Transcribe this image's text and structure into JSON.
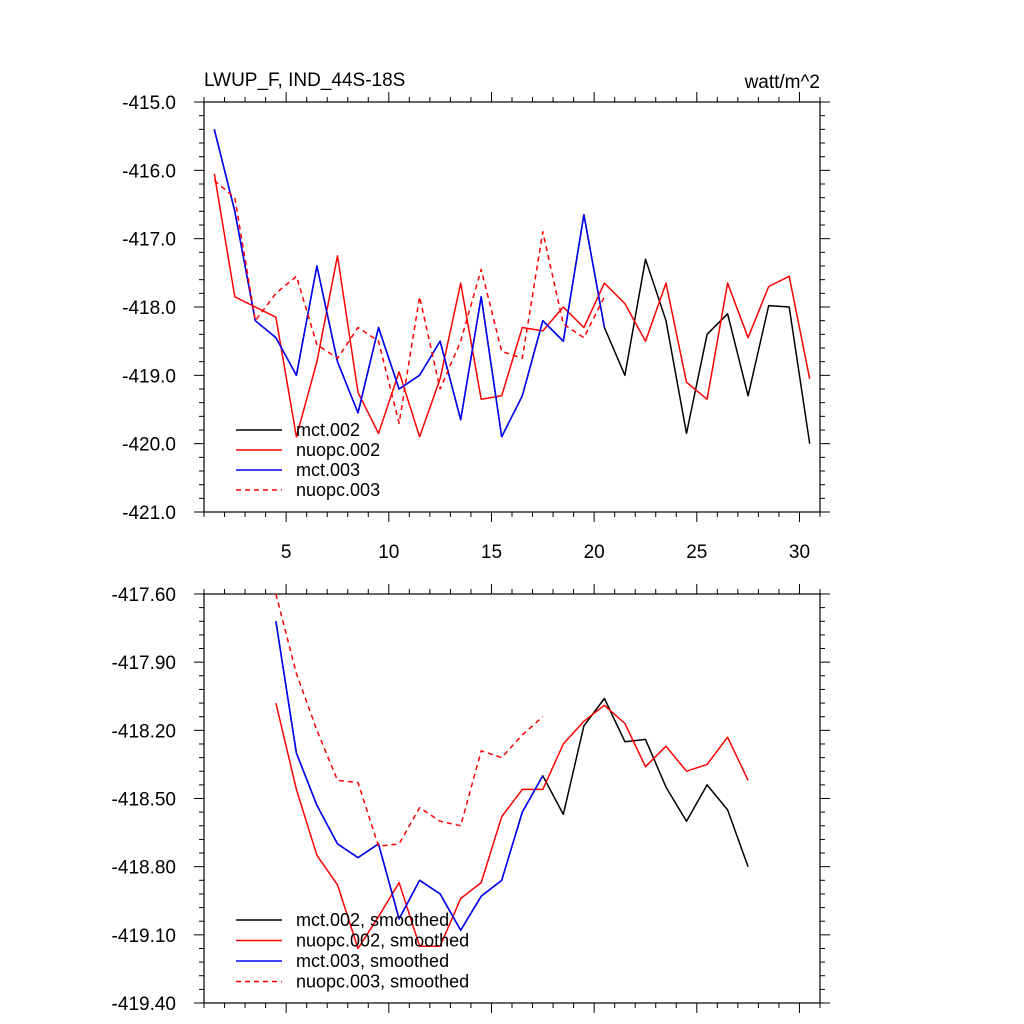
{
  "chart_data": [
    {
      "type": "line",
      "title": "LWUP_F, IND_44S-18S",
      "units": "watt/m^2",
      "xlim": [
        1,
        31
      ],
      "ylim": [
        -421.0,
        -415.0
      ],
      "x_ticks": [
        5,
        10,
        15,
        20,
        25,
        30
      ],
      "x_tick_labels": [
        "5",
        "10",
        "15",
        "20",
        "25",
        "30"
      ],
      "y_ticks": [
        -421.0,
        -420.0,
        -419.0,
        -418.0,
        -417.0,
        -416.0,
        -415.0
      ],
      "y_tick_labels": [
        "-421.0",
        "-420.0",
        "-419.0",
        "-418.0",
        "-417.0",
        "-416.0",
        "-415.0"
      ],
      "legend_position": "bottom-left",
      "series": [
        {
          "name": "mct.002",
          "color": "#000000",
          "dash": "solid",
          "x": [
            1.5,
            2.5,
            3.5,
            4.5,
            5.5,
            6.5,
            7.5,
            8.5,
            9.5,
            10.5,
            11.5,
            12.5,
            13.5,
            14.5,
            15.5,
            16.5,
            17.5,
            18.5,
            19.5,
            20.5,
            21.5,
            22.5,
            23.5,
            24.5,
            25.5,
            26.5,
            27.5,
            28.5,
            29.5,
            30.5
          ],
          "values": [
            -415.4,
            -416.6,
            -418.2,
            -418.45,
            -419.0,
            -417.4,
            -418.8,
            -419.55,
            -418.3,
            -419.2,
            -419.0,
            -418.5,
            -419.65,
            -417.85,
            -419.9,
            -419.3,
            -418.2,
            -418.5,
            -416.65,
            -418.3,
            -419.0,
            -417.3,
            -418.2,
            -419.85,
            -418.4,
            -418.1,
            -419.3,
            -417.98,
            -418.0,
            -420.0
          ]
        },
        {
          "name": "nuopc.002",
          "color": "#ff0000",
          "dash": "solid",
          "x": [
            1.5,
            2.5,
            3.5,
            4.5,
            5.5,
            6.5,
            7.5,
            8.5,
            9.5,
            10.5,
            11.5,
            12.5,
            13.5,
            14.5,
            15.5,
            16.5,
            17.5,
            18.5,
            19.5,
            20.5,
            21.5,
            22.5,
            23.5,
            24.5,
            25.5,
            26.5,
            27.5,
            28.5,
            29.5,
            30.5
          ],
          "values": [
            -416.05,
            -417.85,
            -418.0,
            -418.15,
            -419.9,
            -418.8,
            -417.25,
            -419.25,
            -419.85,
            -418.95,
            -419.9,
            -419.05,
            -417.65,
            -419.35,
            -419.3,
            -418.3,
            -418.35,
            -418.0,
            -418.3,
            -417.65,
            -417.95,
            -418.5,
            -417.65,
            -419.1,
            -419.35,
            -417.65,
            -418.45,
            -417.7,
            -417.55,
            -419.05
          ]
        },
        {
          "name": "mct.003",
          "color": "#0000ff",
          "dash": "solid",
          "x": [
            1.5,
            2.5,
            3.5,
            4.5,
            5.5,
            6.5,
            7.5,
            8.5,
            9.5,
            10.5,
            11.5,
            12.5,
            13.5,
            14.5,
            15.5,
            16.5,
            17.5,
            18.5,
            19.5,
            20.5
          ],
          "values": [
            -415.4,
            -416.6,
            -418.2,
            -418.45,
            -419.0,
            -417.4,
            -418.8,
            -419.55,
            -418.3,
            -419.2,
            -419.0,
            -418.5,
            -419.65,
            -417.85,
            -419.9,
            -419.3,
            -418.2,
            -418.5,
            -416.65,
            -418.3
          ]
        },
        {
          "name": "nuopc.003",
          "color": "#ff0000",
          "dash": "dashed",
          "x": [
            1.5,
            2.5,
            3.5,
            4.5,
            5.5,
            6.5,
            7.5,
            8.5,
            9.5,
            10.5,
            11.5,
            12.5,
            13.5,
            14.5,
            15.5,
            16.5,
            17.5,
            18.5,
            19.5,
            20.5
          ],
          "values": [
            -416.15,
            -416.4,
            -418.2,
            -417.8,
            -417.55,
            -418.55,
            -418.75,
            -418.3,
            -418.5,
            -419.7,
            -417.85,
            -419.2,
            -418.5,
            -417.45,
            -418.65,
            -418.75,
            -416.9,
            -418.25,
            -418.45,
            -417.85
          ]
        }
      ]
    },
    {
      "type": "line",
      "xlim": [
        1,
        31
      ],
      "ylim": [
        -419.4,
        -417.6
      ],
      "x_ticks": [
        5,
        10,
        15,
        20,
        25,
        30
      ],
      "y_ticks": [
        -419.4,
        -419.1,
        -418.8,
        -418.5,
        -418.2,
        -417.9,
        -417.6
      ],
      "y_tick_labels": [
        "-419.40",
        "-419.10",
        "-418.80",
        "-418.50",
        "-418.20",
        "-417.90",
        "-417.60"
      ],
      "legend_position": "bottom-left",
      "series": [
        {
          "name": "mct.002, smoothed",
          "color": "#000000",
          "dash": "solid",
          "x": [
            4.5,
            5.5,
            6.5,
            7.5,
            8.5,
            9.5,
            10.5,
            11.5,
            12.5,
            13.5,
            14.5,
            15.5,
            16.5,
            17.5,
            18.5,
            19.5,
            20.5,
            21.5,
            22.5,
            23.5,
            24.5,
            25.5,
            26.5,
            27.5
          ],
          "values": [
            -417.72,
            -418.3,
            -418.53,
            -418.7,
            -418.76,
            -418.7,
            -419.03,
            -418.86,
            -418.92,
            -419.08,
            -418.93,
            -418.86,
            -418.56,
            -418.4,
            -418.57,
            -418.18,
            -418.06,
            -418.25,
            -418.24,
            -418.45,
            -418.6,
            -418.44,
            -418.55,
            -418.8
          ]
        },
        {
          "name": "nuopc.002, smoothed",
          "color": "#ff0000",
          "dash": "solid",
          "x": [
            4.5,
            5.5,
            6.5,
            7.5,
            8.5,
            9.5,
            10.5,
            11.5,
            12.5,
            13.5,
            14.5,
            15.5,
            16.5,
            17.5,
            18.5,
            19.5,
            20.5,
            21.5,
            22.5,
            23.5,
            24.5,
            25.5,
            26.5,
            27.5
          ],
          "values": [
            -418.08,
            -418.46,
            -418.75,
            -418.88,
            -419.16,
            -419.02,
            -418.87,
            -419.15,
            -419.15,
            -418.94,
            -418.87,
            -418.58,
            -418.46,
            -418.46,
            -418.26,
            -418.16,
            -418.09,
            -418.17,
            -418.36,
            -418.27,
            -418.38,
            -418.35,
            -418.23,
            -418.42
          ]
        },
        {
          "name": "mct.003, smoothed",
          "color": "#0000ff",
          "dash": "solid",
          "x": [
            4.5,
            5.5,
            6.5,
            7.5,
            8.5,
            9.5,
            10.5,
            11.5,
            12.5,
            13.5,
            14.5,
            15.5,
            16.5,
            17.5
          ],
          "values": [
            -417.72,
            -418.3,
            -418.53,
            -418.7,
            -418.76,
            -418.7,
            -419.03,
            -418.86,
            -418.92,
            -419.08,
            -418.93,
            -418.86,
            -418.56,
            -418.4
          ]
        },
        {
          "name": "nuopc.003, smoothed",
          "color": "#ff0000",
          "dash": "dashed",
          "x": [
            4.5,
            5.5,
            6.5,
            7.5,
            8.5,
            9.5,
            10.5,
            11.5,
            12.5,
            13.5,
            14.5,
            15.5,
            16.5,
            17.5
          ],
          "values": [
            -417.6,
            -417.95,
            -418.2,
            -418.42,
            -418.43,
            -418.71,
            -418.7,
            -418.54,
            -418.6,
            -418.62,
            -418.29,
            -418.32,
            -418.22,
            -418.14
          ]
        }
      ]
    }
  ]
}
